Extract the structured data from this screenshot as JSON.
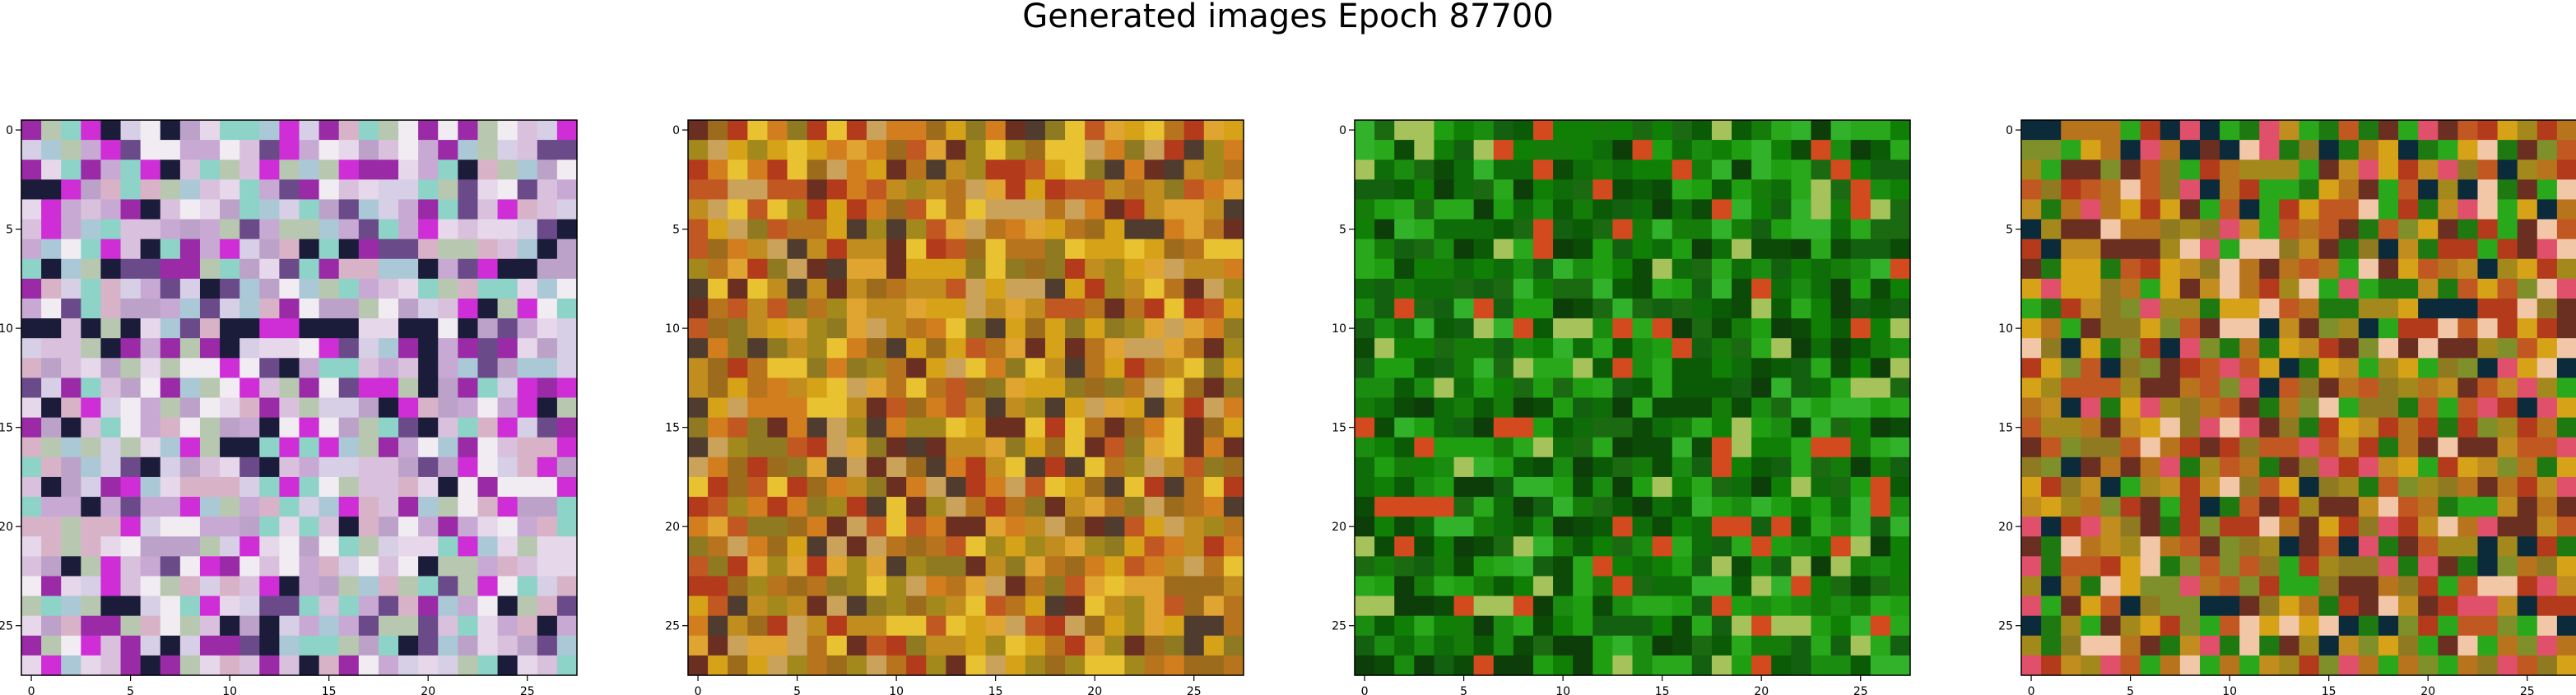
{
  "figure": {
    "title": "Generated images Epoch 87700"
  },
  "chart_data": [
    {
      "type": "heatmap",
      "name": "generated-image-1",
      "palette": [
        "#e6d8ea",
        "#d9c1de",
        "#c8a9d3",
        "#bca2c8",
        "#d6cfe5",
        "#f0ecf2",
        "#aac8d6",
        "#8dd3c7",
        "#9b2aa7",
        "#cf2ed7",
        "#6b4a8a",
        "#1b1c3a",
        "#d8b3c8",
        "#b8c8b0"
      ],
      "dark_row": 10,
      "xticks": [
        0,
        5,
        10,
        15,
        20,
        25
      ],
      "yticks": [
        0,
        5,
        10,
        15,
        20,
        25
      ],
      "xlim": [
        -0.5,
        27.5
      ],
      "ylim": [
        27.5,
        -0.5
      ],
      "rows": 28,
      "cols": 28
    },
    {
      "type": "heatmap",
      "name": "generated-image-2",
      "palette": [
        "#c28d1f",
        "#b7741c",
        "#d6a218",
        "#9c6b1c",
        "#c15822",
        "#e0a431",
        "#8f7a21",
        "#a3891c",
        "#d27e1f",
        "#6b2f22",
        "#b33a1b",
        "#e8c231",
        "#4f3c2e",
        "#caa25a"
      ],
      "dark_row": -1,
      "xticks": [
        0,
        5,
        10,
        15,
        20,
        25
      ],
      "yticks": [
        0,
        5,
        10,
        15,
        20,
        25
      ],
      "xlim": [
        -0.5,
        27.5
      ],
      "ylim": [
        27.5,
        -0.5
      ],
      "rows": 28,
      "cols": 28
    },
    {
      "type": "heatmap",
      "name": "generated-image-3",
      "palette": [
        "#157c0a",
        "#0e6d08",
        "#1a8c10",
        "#0a5a06",
        "#209e12",
        "#0b4a07",
        "#2aa81c",
        "#1b6a12",
        "#0f8005",
        "#0d3d08",
        "#31b22a",
        "#126010",
        "#d24a1e",
        "#a6c25a"
      ],
      "dark_row": -1,
      "xticks": [
        0,
        5,
        10,
        15,
        20,
        25
      ],
      "yticks": [
        0,
        5,
        10,
        15,
        20,
        25
      ],
      "xlim": [
        -0.5,
        27.5
      ],
      "ylim": [
        27.5,
        -0.5
      ],
      "rows": 28,
      "cols": 28
    },
    {
      "type": "heatmap",
      "name": "generated-image-4",
      "palette": [
        "#c28d1f",
        "#b7741c",
        "#a3891c",
        "#8f7a21",
        "#c15822",
        "#d6a218",
        "#6b2f22",
        "#b33a1b",
        "#1e7a10",
        "#2aa81c",
        "#e0506a",
        "#0b2a3a",
        "#f2c7a8",
        "#7f8f2a"
      ],
      "dark_row": -1,
      "xticks": [
        0,
        5,
        10,
        15,
        20,
        25
      ],
      "yticks": [
        0,
        5,
        10,
        15,
        20,
        25
      ],
      "xlim": [
        -0.5,
        27.5
      ],
      "ylim": [
        27.5,
        -0.5
      ],
      "rows": 28,
      "cols": 28
    }
  ]
}
